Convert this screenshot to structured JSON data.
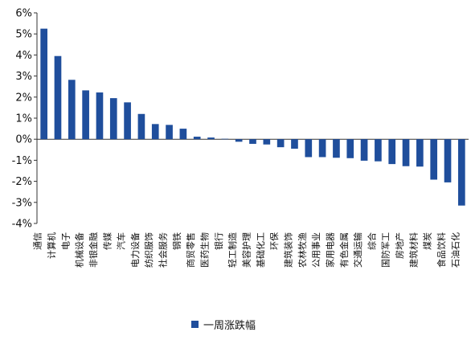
{
  "chart_data": {
    "type": "bar",
    "title": "",
    "xlabel": "",
    "ylabel": "",
    "ylim": [
      -4,
      6
    ],
    "yticks": [
      -4,
      -3,
      -2,
      -1,
      0,
      1,
      2,
      3,
      4,
      5,
      6
    ],
    "ytick_labels": [
      "-4%",
      "-3%",
      "-2%",
      "-1%",
      "0%",
      "1%",
      "2%",
      "3%",
      "4%",
      "5%",
      "6%"
    ],
    "grid": false,
    "legend_position": "bottom-center",
    "bar_color": "#1f4e9c",
    "categories": [
      "通信",
      "计算机",
      "电子",
      "机械设备",
      "非银金融",
      "传媒",
      "汽车",
      "电力设备",
      "纺织服饰",
      "社会服务",
      "钢铁",
      "商贸零售",
      "医药生物",
      "银行",
      "轻工制造",
      "美容护理",
      "基础化工",
      "环保",
      "建筑装饰",
      "农林牧渔",
      "公用事业",
      "家用电器",
      "有色金属",
      "交通运输",
      "综合",
      "国防军工",
      "房地产",
      "建筑材料",
      "煤炭",
      "食品饮料",
      "石油石化"
    ],
    "series": [
      {
        "name": "一周涨跌幅",
        "values": [
          5.25,
          3.95,
          2.82,
          2.32,
          2.22,
          1.95,
          1.75,
          1.2,
          0.72,
          0.68,
          0.5,
          0.12,
          0.08,
          0.02,
          -0.12,
          -0.22,
          -0.25,
          -0.38,
          -0.45,
          -0.85,
          -0.85,
          -0.88,
          -0.9,
          -1.02,
          -1.05,
          -1.18,
          -1.28,
          -1.3,
          -1.92,
          -2.05,
          -3.15
        ]
      }
    ]
  }
}
